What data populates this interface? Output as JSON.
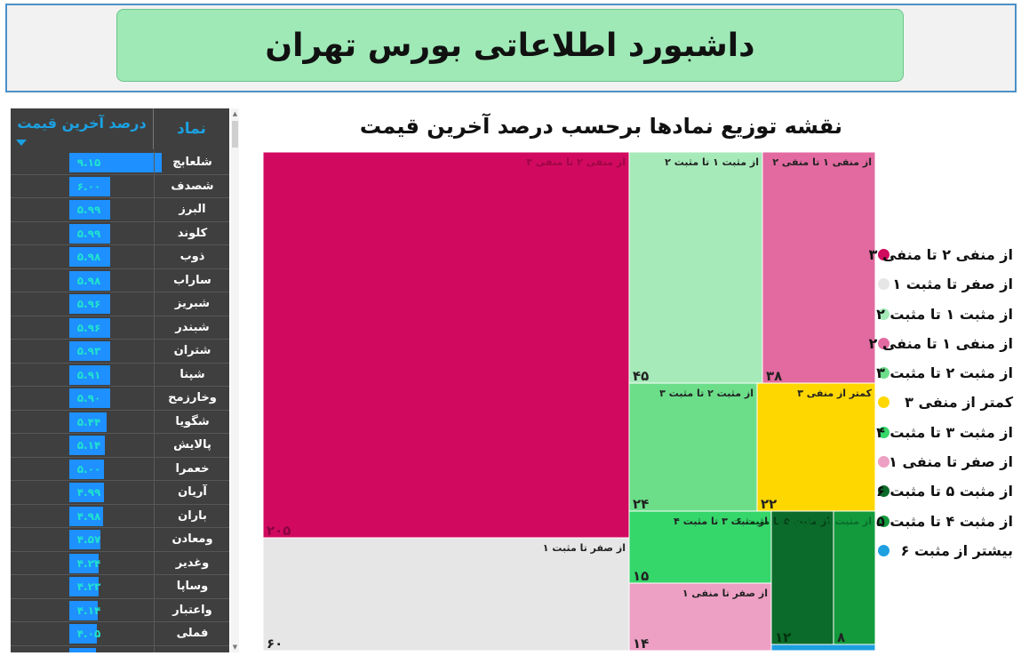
{
  "header": {
    "title": "داشبورد اطلاعاتی بورس تهران"
  },
  "table": {
    "col_pct": "درصد آخرین قیمت",
    "col_symbol": "نماد",
    "rows": [
      {
        "symbol": "شلعابچ",
        "value": "۹.۱۵",
        "num": 9.15
      },
      {
        "symbol": "شصدف",
        "value": "۶.۰۰",
        "num": 6.0
      },
      {
        "symbol": "البرز",
        "value": "۵.۹۹",
        "num": 5.99
      },
      {
        "symbol": "کلوند",
        "value": "۵.۹۹",
        "num": 5.99
      },
      {
        "symbol": "ذوب",
        "value": "۵.۹۸",
        "num": 5.98
      },
      {
        "symbol": "ساراب",
        "value": "۵.۹۸",
        "num": 5.98
      },
      {
        "symbol": "شبریز",
        "value": "۵.۹۶",
        "num": 5.96
      },
      {
        "symbol": "شبندر",
        "value": "۵.۹۶",
        "num": 5.96
      },
      {
        "symbol": "شتران",
        "value": "۵.۹۳",
        "num": 5.93
      },
      {
        "symbol": "شپنا",
        "value": "۵.۹۱",
        "num": 5.91
      },
      {
        "symbol": "وخارزمح",
        "value": "۵.۹۰",
        "num": 5.9
      },
      {
        "symbol": "شگویا",
        "value": "۵.۴۴",
        "num": 5.44
      },
      {
        "symbol": "پالایش",
        "value": "۵.۱۴",
        "num": 5.14
      },
      {
        "symbol": "خعمرا",
        "value": "۵.۰۰",
        "num": 5.0
      },
      {
        "symbol": "آریان",
        "value": "۴.۹۹",
        "num": 4.99
      },
      {
        "symbol": "باران",
        "value": "۴.۹۸",
        "num": 4.98
      },
      {
        "symbol": "ومعادن",
        "value": "۴.۵۷",
        "num": 4.57
      },
      {
        "symbol": "وغدیر",
        "value": "۴.۲۴",
        "num": 4.24
      },
      {
        "symbol": "وساپا",
        "value": "۴.۲۳",
        "num": 4.23
      },
      {
        "symbol": "واعتبار",
        "value": "۴.۱۴",
        "num": 4.14
      },
      {
        "symbol": "فملی",
        "value": "۴.۰۵",
        "num": 4.05
      },
      {
        "symbol": "",
        "value": "",
        "num": 3.9
      }
    ]
  },
  "chart_data": {
    "type": "treemap",
    "title": "نقشه توزیع نمادها برحسب درصد آخرین قیمت",
    "series": [
      {
        "name": "از منفی ۲ تا منفی ۳",
        "count": 205,
        "count_label": "۲۰۵",
        "color": "#d10a5f"
      },
      {
        "name": "از صفر تا مثبت ۱",
        "count": 60,
        "count_label": "۶۰",
        "color": "#e6e6e6"
      },
      {
        "name": "از مثبت ۱ تا مثبت ۲",
        "count": 45,
        "count_label": "۴۵",
        "color": "#a6eab9"
      },
      {
        "name": "از منفی ۱ تا منفی ۲",
        "count": 38,
        "count_label": "۳۸",
        "color": "#e26aa0"
      },
      {
        "name": "از مثبت ۲ تا مثبت ۳",
        "count": 24,
        "count_label": "۲۴",
        "color": "#6cde8a"
      },
      {
        "name": "کمتر از منفی ۳",
        "count": 22,
        "count_label": "۲۲",
        "color": "#ffd700"
      },
      {
        "name": "از مثبت ۳ تا مثبت ۴",
        "count": 15,
        "count_label": "۱۵",
        "color": "#35d66a"
      },
      {
        "name": "از صفر تا منفی ۱",
        "count": 14,
        "count_label": "۱۴",
        "color": "#eea0c4"
      },
      {
        "name": "از مثبت ۵ تا مثبت ۶",
        "count": 12,
        "count_label": "۱۲",
        "color": "#0b6b2a"
      },
      {
        "name": "از مثبت ۴ تا مثبت ۵",
        "count": 8,
        "count_label": "۸",
        "color": "#129a3c"
      },
      {
        "name": "بیشتر از مثبت ۶",
        "count": 1,
        "count_label": "",
        "color": "#1e9fe0"
      }
    ]
  }
}
